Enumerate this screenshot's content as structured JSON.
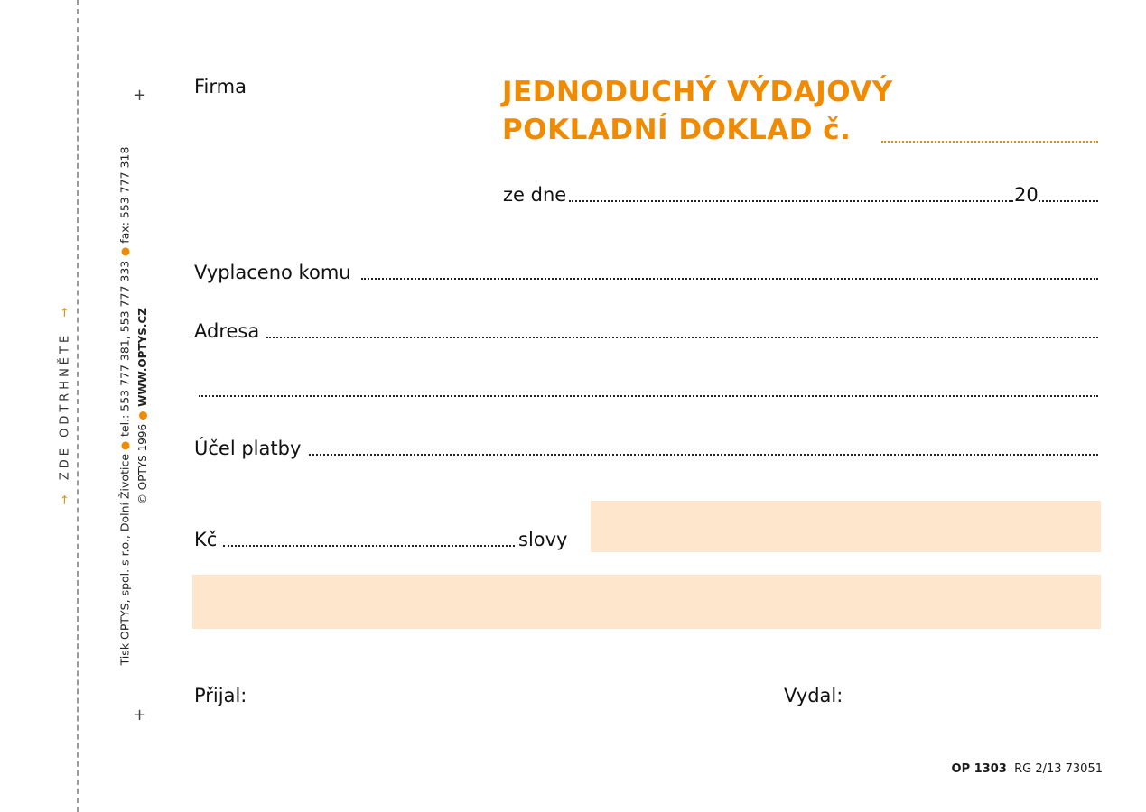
{
  "tear_off": {
    "label": "ZDE ODTRHNĚTE",
    "arrow": "→"
  },
  "printer": {
    "line1_parts": [
      "Tisk OPTYS, spol. s r.o., Dolní Životice",
      "tel.: 553 777 381, 553 777 333",
      "fax: 553 777 318"
    ],
    "line2_copyright": "© OPTYS 1996",
    "line2_web": "WWW.OPTYS.CZ"
  },
  "form": {
    "firma_label": "Firma",
    "title_line1": "JEDNODUCHÝ VÝDAJOVÝ",
    "title_line2": "POKLADNÍ DOKLAD č.",
    "date_label": "ze dne",
    "year_label": "20",
    "paid_to_label": "Vyplaceno komu",
    "address_label": "Adresa",
    "purpose_label": "Účel platby",
    "amount_label": "Kč",
    "words_label": "slovy",
    "received_label": "Přijal:",
    "issued_label": "Vydal:"
  },
  "footer": {
    "code": "OP 1303",
    "ref": "RG 2/13  73051"
  },
  "colors": {
    "accent": "#f08a00",
    "fill": "#fde6cc"
  }
}
